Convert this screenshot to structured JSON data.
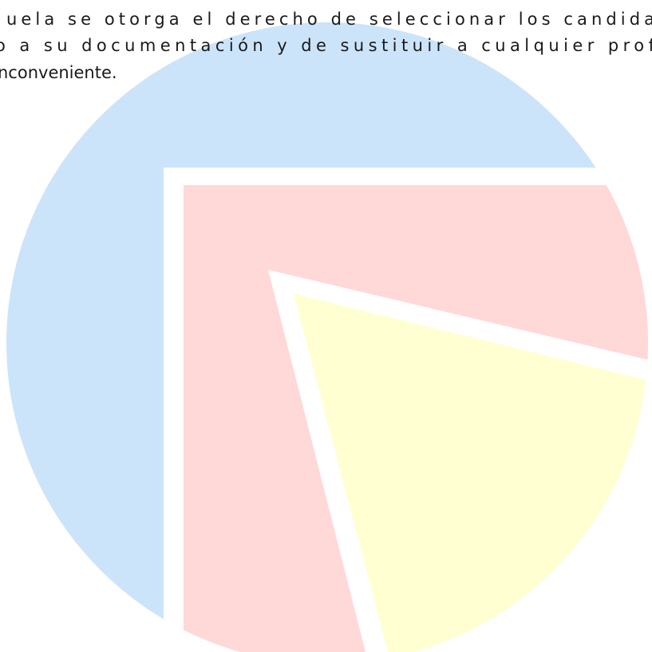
{
  "document": {
    "lines": [
      "uela se otorga el derecho de seleccionar los candida",
      "o a su documentación y de sustituir a cualquier prof",
      "nconveniente."
    ]
  }
}
